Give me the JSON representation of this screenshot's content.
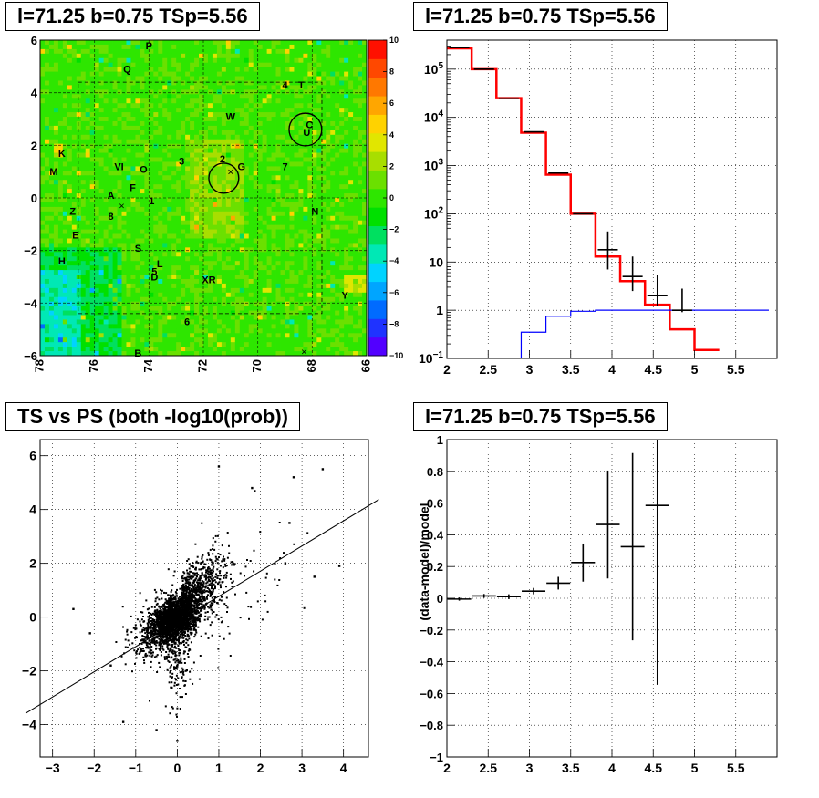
{
  "titles": {
    "map": "l=71.25 b=0.75 TSp=5.56",
    "spectrum": "l=71.25 b=0.75 TSp=5.56",
    "scatter": "TS vs PS (both -log10(prob))",
    "residual": "l=71.25 b=0.75 TSp=5.56"
  },
  "chart_data": [
    {
      "type": "heatmap",
      "xlim": [
        78,
        66
      ],
      "ylim": [
        -6,
        6
      ],
      "x_ticks": [
        "78",
        "76",
        "74",
        "72",
        "70",
        "68",
        "66"
      ],
      "y_ticks": [
        "-6",
        "-4",
        "-2",
        "0",
        "2",
        "4",
        "6"
      ],
      "colorbar": {
        "range": [
          -10,
          10
        ],
        "ticks": [
          "10",
          "8",
          "6",
          "4",
          "2",
          "0",
          "-2",
          "-4",
          "-6",
          "-8",
          "-10"
        ],
        "colors": [
          "#5200ff",
          "#1f33ff",
          "#006bff",
          "#00a5ff",
          "#00d3ff",
          "#00e8b5",
          "#00e060",
          "#00e000",
          "#2ee600",
          "#6be000",
          "#a8de00",
          "#e1e600",
          "#ffd200",
          "#ffa600",
          "#ff7800",
          "#ff4800",
          "#ff1000"
        ]
      },
      "source_labels": [
        {
          "text": "P",
          "l": 74.0,
          "b": 5.8
        },
        {
          "text": "Q",
          "l": 74.8,
          "b": 4.9
        },
        {
          "text": "4",
          "l": 69.0,
          "b": 4.3
        },
        {
          "text": "T",
          "l": 68.4,
          "b": 4.3
        },
        {
          "text": "W",
          "l": 71.0,
          "b": 3.1
        },
        {
          "text": "C",
          "l": 68.1,
          "b": 2.8
        },
        {
          "text": "U",
          "l": 68.2,
          "b": 2.5
        },
        {
          "text": "K",
          "l": 77.2,
          "b": 1.7
        },
        {
          "text": "3",
          "l": 72.8,
          "b": 1.4
        },
        {
          "text": "2",
          "l": 71.3,
          "b": 1.5
        },
        {
          "text": "G",
          "l": 70.6,
          "b": 1.2
        },
        {
          "text": "7",
          "l": 69.0,
          "b": 1.2
        },
        {
          "text": "M",
          "l": 77.5,
          "b": 1.0
        },
        {
          "text": "VI",
          "l": 75.1,
          "b": 1.2
        },
        {
          "text": "O",
          "l": 74.2,
          "b": 1.1
        },
        {
          "text": "F",
          "l": 74.6,
          "b": 0.4
        },
        {
          "text": "A",
          "l": 75.4,
          "b": 0.1
        },
        {
          "text": "1",
          "l": 73.9,
          "b": -0.1
        },
        {
          "text": "Z",
          "l": 76.8,
          "b": -0.5
        },
        {
          "text": "8",
          "l": 75.4,
          "b": -0.7
        },
        {
          "text": "N",
          "l": 67.9,
          "b": -0.5
        },
        {
          "text": "E",
          "l": 76.7,
          "b": -1.4
        },
        {
          "text": "S",
          "l": 74.4,
          "b": -1.9
        },
        {
          "text": "H",
          "l": 77.2,
          "b": -2.4
        },
        {
          "text": "L",
          "l": 73.6,
          "b": -2.5
        },
        {
          "text": "5",
          "l": 73.8,
          "b": -2.8
        },
        {
          "text": "D",
          "l": 73.8,
          "b": -3.0
        },
        {
          "text": "XR",
          "l": 71.8,
          "b": -3.1
        },
        {
          "text": "Y",
          "l": 66.8,
          "b": -3.7
        },
        {
          "text": "6",
          "l": 72.6,
          "b": -4.7
        },
        {
          "text": "B",
          "l": 74.4,
          "b": -5.9
        }
      ],
      "circles": [
        {
          "l": 68.25,
          "b": 2.6,
          "r": 0.6
        },
        {
          "l": 71.25,
          "b": 0.75,
          "r": 0.55
        }
      ]
    },
    {
      "type": "step",
      "xlim": [
        2,
        6
      ],
      "ylim": [
        0.1,
        400000
      ],
      "log_y": true,
      "grid": true,
      "x_ticks": [
        "2",
        "2.5",
        "3",
        "3.5",
        "4",
        "4.5",
        "5",
        "5.5"
      ],
      "y_ticks": [
        "10^-1",
        "1",
        "10",
        "10^2",
        "10^3",
        "10^4",
        "10^5"
      ],
      "bin_edges": [
        2.0,
        2.3,
        2.6,
        2.9,
        3.2,
        3.5,
        3.8,
        4.1,
        4.4,
        4.7,
        5.0,
        5.3,
        5.6,
        5.9
      ],
      "series": [
        {
          "color": "#ff0000",
          "values": [
            270000,
            100000,
            25000,
            4800,
            650,
            100,
            13,
            4,
            1.3,
            0.4,
            0.15,
            0.09,
            0.07
          ]
        },
        {
          "color": "#0000ff",
          "values": [
            0.05,
            0.05,
            0.05,
            0.35,
            0.75,
            0.95,
            1.0,
            1.0,
            1.0,
            1.0,
            1.0,
            1.0,
            1.0
          ]
        },
        {
          "color": "#000000",
          "errorbars": true,
          "x": [
            2.15,
            2.45,
            2.75,
            3.05,
            3.35,
            3.65,
            3.95,
            4.25,
            4.55,
            4.85
          ],
          "values": [
            280000,
            100000,
            25000,
            5000,
            700,
            100,
            18,
            5,
            2,
            1
          ],
          "err_low": [
            0,
            0,
            0,
            0,
            0,
            0,
            11,
            2.5,
            0.8,
            0.09
          ],
          "err_high": [
            0,
            0,
            0,
            0,
            0,
            0,
            25,
            8,
            3.5,
            1.8
          ]
        }
      ]
    },
    {
      "type": "scatter",
      "xlim": [
        -3.3,
        4.6
      ],
      "ylim": [
        -5.2,
        6.6
      ],
      "grid": true,
      "x_ticks": [
        "-3",
        "-2",
        "-1",
        "0",
        "1",
        "2",
        "3",
        "4"
      ],
      "y_ticks": [
        "-4",
        "-2",
        "0",
        "2",
        "4",
        "6"
      ],
      "fit_line": {
        "slope": 0.98,
        "intercept": 0.0
      },
      "outliers": [
        [
          3.5,
          5.5
        ],
        [
          2.8,
          5.2
        ],
        [
          1.0,
          5.6
        ],
        [
          3.9,
          1.9
        ],
        [
          -2.5,
          0.3
        ],
        [
          -1.3,
          -3.9
        ],
        [
          0.0,
          -4.6
        ],
        [
          -0.5,
          -4.2
        ],
        [
          1.8,
          4.8
        ],
        [
          3.3,
          1.5
        ],
        [
          2.6,
          2.0
        ],
        [
          -1.6,
          -1.8
        ],
        [
          2.7,
          3.5
        ],
        [
          -2.1,
          -0.6
        ]
      ]
    },
    {
      "type": "errorbar",
      "xlim": [
        2,
        6
      ],
      "ylim": [
        -1,
        1
      ],
      "grid": true,
      "ylabel": "(data-model)/model",
      "x_ticks": [
        "2",
        "2.5",
        "3",
        "3.5",
        "4",
        "4.5",
        "5",
        "5.5"
      ],
      "y_ticks": [
        "-1",
        "-0.8",
        "-0.6",
        "-0.4",
        "-0.2",
        "0",
        "0.2",
        "0.4",
        "0.6",
        "0.8",
        "1"
      ],
      "x": [
        2.15,
        2.45,
        2.75,
        3.05,
        3.35,
        3.65,
        3.95,
        4.25,
        4.55
      ],
      "values": [
        -0.005,
        0.015,
        0.01,
        0.045,
        0.095,
        0.225,
        0.465,
        0.325,
        0.585
      ],
      "err": [
        0.01,
        0.012,
        0.015,
        0.02,
        0.04,
        0.12,
        0.34,
        0.59,
        1.13
      ]
    }
  ]
}
